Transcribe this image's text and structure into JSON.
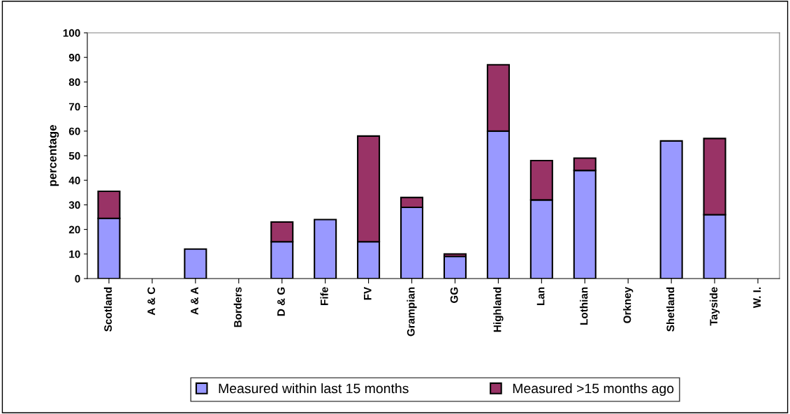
{
  "chart_data": {
    "type": "bar",
    "stacked": true,
    "ylabel": "percentage",
    "categories": [
      "Scotland",
      "A & C",
      "A & A",
      "Borders",
      "D & G",
      "Fife",
      "FV",
      "Grampian",
      "GG",
      "Highland",
      "Lan",
      "Lothian",
      "Orkney",
      "Shetland",
      "Tayside",
      "W. I."
    ],
    "series": [
      {
        "name": "Measured within last 15 months",
        "color": "#9999ff",
        "values": [
          24.5,
          0,
          12,
          0,
          15,
          24,
          15,
          29,
          9,
          60,
          32,
          44,
          0,
          56,
          26,
          0
        ]
      },
      {
        "name": "Measured >15 months ago",
        "color": "#993366",
        "values": [
          11,
          0,
          0,
          0,
          8,
          0,
          43,
          4,
          1,
          27,
          16,
          5,
          0,
          0,
          31,
          0
        ]
      }
    ],
    "ylim": [
      0,
      100
    ],
    "yticks": [
      0,
      10,
      20,
      30,
      40,
      50,
      60,
      70,
      80,
      90,
      100
    ],
    "grid": false,
    "legend": "bottom"
  }
}
